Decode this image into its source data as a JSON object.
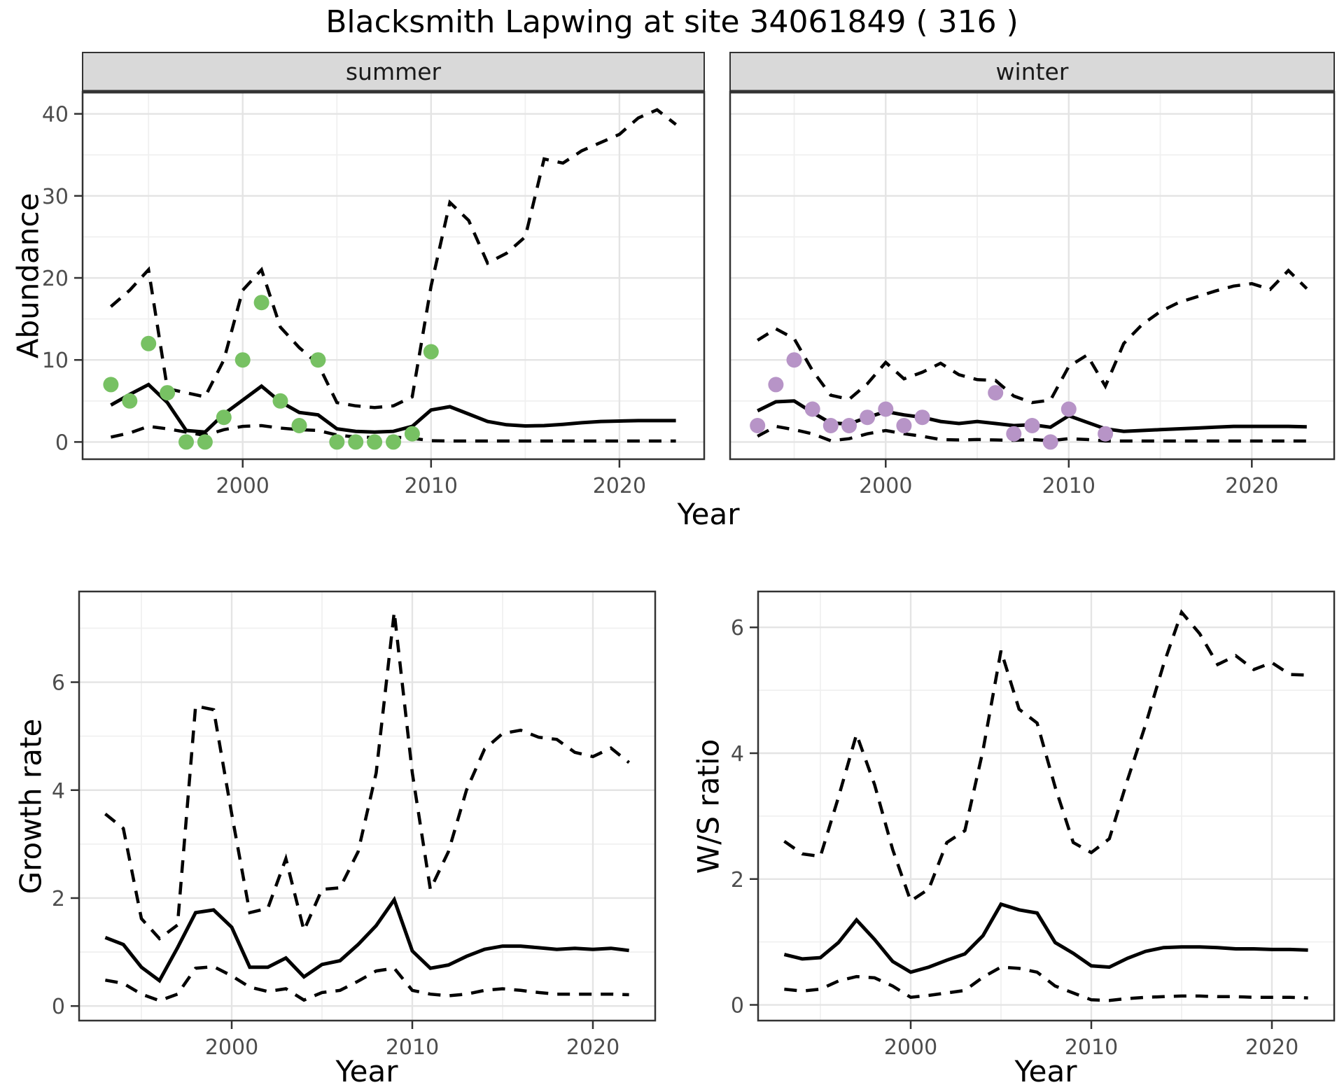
{
  "title": "Blacksmith Lapwing at site 34061849 ( 316 )",
  "facets": {
    "summer": "summer",
    "winter": "winter"
  },
  "axis_labels": {
    "year": "Year",
    "abundance": "Abundance",
    "growth_rate": "Growth rate",
    "ws_ratio": "W/S ratio"
  },
  "style": {
    "point_green": "#77C163",
    "point_purple": "#B794C7",
    "line": "#000000",
    "grid_major": "#E4E4E4",
    "grid_minor": "#F0F0F0",
    "panel_border": "#333333",
    "strip_bg": "#D9D9D9",
    "tick_label": "#4D4D4D"
  },
  "chart_data": [
    {
      "id": "abundance_summer",
      "type": "line",
      "facet": "summer",
      "xlabel": "Year",
      "ylabel": "Abundance",
      "x": [
        1993,
        1994,
        1995,
        1996,
        1997,
        1998,
        1999,
        2000,
        2001,
        2002,
        2003,
        2004,
        2005,
        2006,
        2007,
        2008,
        2009,
        2010,
        2011,
        2012,
        2013,
        2014,
        2015,
        2016,
        2017,
        2018,
        2019,
        2020,
        2021,
        2022,
        2023
      ],
      "series": [
        {
          "name": "mean",
          "style": "solid",
          "values": [
            4.5,
            5.8,
            7.0,
            4.8,
            1.4,
            1.2,
            3.4,
            5.1,
            6.8,
            4.9,
            3.6,
            3.3,
            1.6,
            1.3,
            1.2,
            1.3,
            1.9,
            3.9,
            4.3,
            3.4,
            2.5,
            2.1,
            1.95,
            2.0,
            2.15,
            2.35,
            2.5,
            2.55,
            2.6,
            2.6,
            2.6
          ]
        },
        {
          "name": "upper_ci",
          "style": "dashed",
          "values": [
            16.5,
            18.5,
            21.0,
            6.5,
            6.0,
            5.5,
            10.0,
            18.5,
            21.0,
            14.0,
            11.5,
            9.5,
            4.8,
            4.4,
            4.2,
            4.4,
            5.5,
            19.0,
            29.2,
            27.0,
            21.8,
            23.0,
            25.0,
            34.5,
            34.0,
            35.5,
            36.5,
            37.5,
            39.5,
            40.5,
            38.7
          ]
        },
        {
          "name": "lower_ci",
          "style": "dashed",
          "values": [
            0.6,
            1.1,
            1.9,
            1.6,
            1.2,
            0.8,
            1.5,
            1.9,
            2.0,
            1.7,
            1.5,
            1.4,
            0.85,
            0.6,
            0.55,
            0.6,
            0.45,
            0.15,
            0.12,
            0.12,
            0.12,
            0.12,
            0.12,
            0.12,
            0.12,
            0.12,
            0.12,
            0.12,
            0.12,
            0.12,
            0.12
          ]
        }
      ],
      "points": {
        "name": "observed_counts",
        "color_key": "point_green",
        "x": [
          1993,
          1994,
          1995,
          1996,
          1997,
          1998,
          1999,
          2000,
          2001,
          2002,
          2003,
          2004,
          2005,
          2006,
          2007,
          2008,
          2009,
          2010
        ],
        "y": [
          7,
          5,
          12,
          6,
          0,
          0,
          3,
          10,
          17,
          5,
          2,
          10,
          0,
          0,
          0,
          0,
          1,
          11
        ]
      },
      "xlim": [
        1991.5,
        2024.5
      ],
      "ylim": [
        -2.1,
        42.7
      ],
      "xticks": [
        2000,
        2010,
        2020
      ],
      "yticks": [
        0,
        10,
        20,
        30,
        40
      ],
      "xminor": [
        1995,
        2005,
        2015
      ],
      "yminor": [
        5,
        15,
        25,
        35
      ],
      "grid": true,
      "legend": "none"
    },
    {
      "id": "abundance_winter",
      "type": "line",
      "facet": "winter",
      "xlabel": "Year",
      "ylabel": "Abundance",
      "x": [
        1993,
        1994,
        1995,
        1996,
        1997,
        1998,
        1999,
        2000,
        2001,
        2002,
        2003,
        2004,
        2005,
        2006,
        2007,
        2008,
        2009,
        2010,
        2011,
        2012,
        2013,
        2014,
        2015,
        2016,
        2017,
        2018,
        2019,
        2020,
        2021,
        2022,
        2023
      ],
      "series": [
        {
          "name": "mean",
          "style": "solid",
          "values": [
            3.8,
            4.9,
            5.0,
            3.6,
            2.3,
            2.2,
            3.0,
            3.7,
            3.3,
            3.0,
            2.5,
            2.25,
            2.5,
            2.25,
            2.0,
            2.1,
            1.8,
            3.2,
            2.4,
            1.6,
            1.3,
            1.4,
            1.5,
            1.6,
            1.7,
            1.8,
            1.9,
            1.9,
            1.9,
            1.9,
            1.85
          ]
        },
        {
          "name": "upper_ci",
          "style": "dashed",
          "values": [
            12.4,
            13.8,
            12.6,
            8.7,
            5.7,
            5.2,
            7.1,
            9.7,
            7.7,
            8.5,
            9.6,
            8.2,
            7.6,
            7.5,
            5.6,
            4.8,
            5.1,
            9.2,
            10.6,
            6.8,
            12.0,
            14.3,
            15.9,
            17.0,
            17.7,
            18.4,
            19.0,
            19.3,
            18.6,
            20.9,
            18.7
          ]
        },
        {
          "name": "lower_ci",
          "style": "dashed",
          "values": [
            0.7,
            1.9,
            1.5,
            1.0,
            0.15,
            0.4,
            1.0,
            1.4,
            1.0,
            0.7,
            0.3,
            0.25,
            0.3,
            0.25,
            0.2,
            0.3,
            0.15,
            0.4,
            0.3,
            0.12,
            0.12,
            0.12,
            0.12,
            0.12,
            0.12,
            0.12,
            0.12,
            0.12,
            0.12,
            0.12,
            0.12
          ]
        }
      ],
      "points": {
        "name": "observed_counts",
        "color_key": "point_purple",
        "x": [
          1993,
          1994,
          1995,
          1996,
          1997,
          1998,
          1999,
          2000,
          2001,
          2002,
          2006,
          2007,
          2008,
          2009,
          2010,
          2012
        ],
        "y": [
          2,
          7,
          10,
          4,
          2,
          2,
          3,
          4,
          2,
          3,
          6,
          1,
          2,
          0,
          4,
          1
        ]
      },
      "xlim": [
        1991.5,
        2024.5
      ],
      "ylim": [
        -2.1,
        42.7
      ],
      "xticks": [
        2000,
        2010,
        2020
      ],
      "yticks": [
        0,
        10,
        20,
        30,
        40
      ],
      "xminor": [
        1995,
        2005,
        2015
      ],
      "yminor": [
        5,
        15,
        25,
        35
      ],
      "grid": true,
      "legend": "none"
    },
    {
      "id": "growth_rate",
      "type": "line",
      "facet": null,
      "xlabel": "Year",
      "ylabel": "Growth rate",
      "x": [
        1993,
        1994,
        1995,
        1996,
        1997,
        1998,
        1999,
        2000,
        2001,
        2002,
        2003,
        2004,
        2005,
        2006,
        2007,
        2008,
        2009,
        2010,
        2011,
        2012,
        2013,
        2014,
        2015,
        2016,
        2017,
        2018,
        2019,
        2020,
        2021,
        2022
      ],
      "series": [
        {
          "name": "mean",
          "style": "solid",
          "values": [
            1.27,
            1.14,
            0.72,
            0.47,
            1.08,
            1.73,
            1.78,
            1.46,
            0.72,
            0.72,
            0.89,
            0.54,
            0.77,
            0.84,
            1.14,
            1.49,
            1.97,
            1.02,
            0.7,
            0.76,
            0.92,
            1.05,
            1.11,
            1.11,
            1.08,
            1.05,
            1.07,
            1.05,
            1.07,
            1.03
          ]
        },
        {
          "name": "upper_ci",
          "style": "dashed",
          "values": [
            3.56,
            3.29,
            1.62,
            1.25,
            1.5,
            5.56,
            5.49,
            3.56,
            1.73,
            1.81,
            2.73,
            1.4,
            2.16,
            2.19,
            2.86,
            4.32,
            7.3,
            4.32,
            2.16,
            2.86,
            4.0,
            4.76,
            5.05,
            5.11,
            4.98,
            4.94,
            4.7,
            4.62,
            4.78,
            4.51
          ]
        },
        {
          "name": "lower_ci",
          "style": "dashed",
          "values": [
            0.48,
            0.42,
            0.22,
            0.1,
            0.22,
            0.7,
            0.73,
            0.56,
            0.35,
            0.27,
            0.32,
            0.11,
            0.25,
            0.29,
            0.46,
            0.65,
            0.7,
            0.29,
            0.22,
            0.19,
            0.22,
            0.29,
            0.32,
            0.29,
            0.25,
            0.22,
            0.22,
            0.22,
            0.22,
            0.21
          ]
        }
      ],
      "points": null,
      "xlim": [
        1991.55,
        2023.45
      ],
      "ylim": [
        -0.27,
        7.68
      ],
      "xticks": [
        2000,
        2010,
        2020
      ],
      "yticks": [
        0,
        2,
        4,
        6
      ],
      "xminor": [
        1995,
        2005,
        2015
      ],
      "yminor": [
        1,
        3,
        5,
        7
      ],
      "grid": true,
      "legend": "none"
    },
    {
      "id": "ws_ratio",
      "type": "line",
      "facet": null,
      "xlabel": "Year",
      "ylabel": "W/S ratio",
      "x": [
        1993,
        1994,
        1995,
        1996,
        1997,
        1998,
        1999,
        2000,
        2001,
        2002,
        2003,
        2004,
        2005,
        2006,
        2007,
        2008,
        2009,
        2010,
        2011,
        2012,
        2013,
        2014,
        2015,
        2016,
        2017,
        2018,
        2019,
        2020,
        2021,
        2022
      ],
      "series": [
        {
          "name": "mean",
          "style": "solid",
          "values": [
            0.8,
            0.73,
            0.75,
            0.99,
            1.35,
            1.04,
            0.69,
            0.52,
            0.6,
            0.71,
            0.81,
            1.1,
            1.6,
            1.51,
            1.46,
            0.99,
            0.82,
            0.62,
            0.6,
            0.74,
            0.85,
            0.91,
            0.92,
            0.92,
            0.91,
            0.89,
            0.89,
            0.88,
            0.88,
            0.87
          ]
        },
        {
          "name": "upper_ci",
          "style": "dashed",
          "values": [
            2.6,
            2.4,
            2.36,
            3.3,
            4.3,
            3.5,
            2.47,
            1.65,
            1.84,
            2.58,
            2.77,
            4.04,
            5.63,
            4.7,
            4.48,
            3.46,
            2.58,
            2.42,
            2.64,
            3.57,
            4.45,
            5.41,
            6.24,
            5.9,
            5.41,
            5.55,
            5.33,
            5.44,
            5.25,
            5.24
          ]
        },
        {
          "name": "lower_ci",
          "style": "dashed",
          "values": [
            0.25,
            0.22,
            0.25,
            0.38,
            0.45,
            0.43,
            0.3,
            0.12,
            0.15,
            0.19,
            0.23,
            0.44,
            0.6,
            0.58,
            0.52,
            0.3,
            0.19,
            0.08,
            0.07,
            0.1,
            0.12,
            0.13,
            0.14,
            0.14,
            0.13,
            0.13,
            0.12,
            0.12,
            0.12,
            0.11
          ]
        }
      ],
      "points": null,
      "xlim": [
        1991.55,
        2023.45
      ],
      "ylim": [
        -0.25,
        6.57
      ],
      "xticks": [
        2000,
        2010,
        2020
      ],
      "yticks": [
        0,
        2,
        4,
        6
      ],
      "xminor": [
        1995,
        2005,
        2015
      ],
      "yminor": [
        1,
        3,
        5
      ],
      "grid": true,
      "legend": "none"
    }
  ]
}
